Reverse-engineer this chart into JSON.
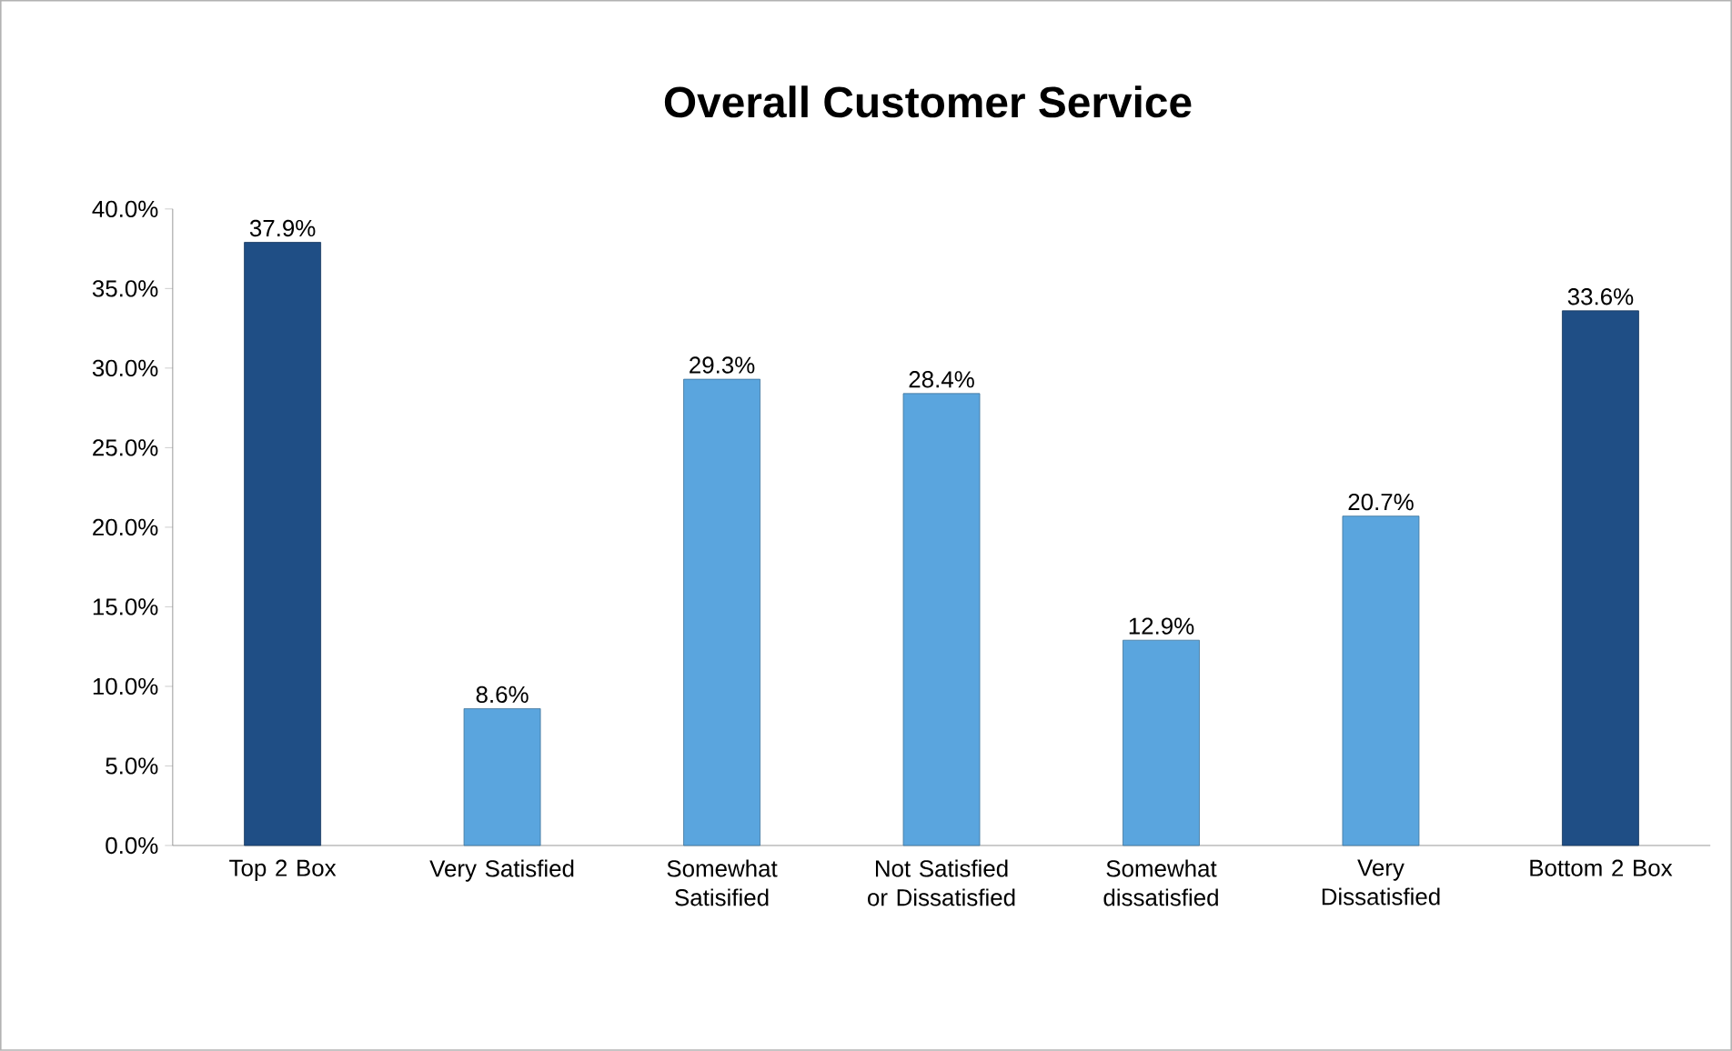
{
  "chart_data": {
    "type": "bar",
    "title": "Overall Customer Service",
    "categories": [
      "Top 2 Box",
      "Very Satisfied",
      "Somewhat Satisified",
      "Not Satisfied or Dissatisfied",
      "Somewhat dissatisfied",
      "Very Dissatisfied",
      "Bottom 2 Box"
    ],
    "values": [
      37.9,
      8.6,
      29.3,
      28.4,
      12.9,
      20.7,
      33.6
    ],
    "value_labels": [
      "37.9%",
      "8.6%",
      "29.3%",
      "28.4%",
      "12.9%",
      "20.7%",
      "33.6%"
    ],
    "colors": [
      "#1f4e85",
      "#5aa5de",
      "#5aa5de",
      "#5aa5de",
      "#5aa5de",
      "#5aa5de",
      "#1f4e85"
    ],
    "ylim": [
      0,
      40
    ],
    "yticks": [
      {
        "value": 0,
        "label": "0.0%"
      },
      {
        "value": 5,
        "label": "5.0%"
      },
      {
        "value": 10,
        "label": "10.0%"
      },
      {
        "value": 15,
        "label": "15.0%"
      },
      {
        "value": 20,
        "label": "20.0%"
      },
      {
        "value": 25,
        "label": "25.0%"
      },
      {
        "value": 30,
        "label": "30.0%"
      },
      {
        "value": 35,
        "label": "35.0%"
      },
      {
        "value": 40,
        "label": "40.0%"
      }
    ]
  }
}
